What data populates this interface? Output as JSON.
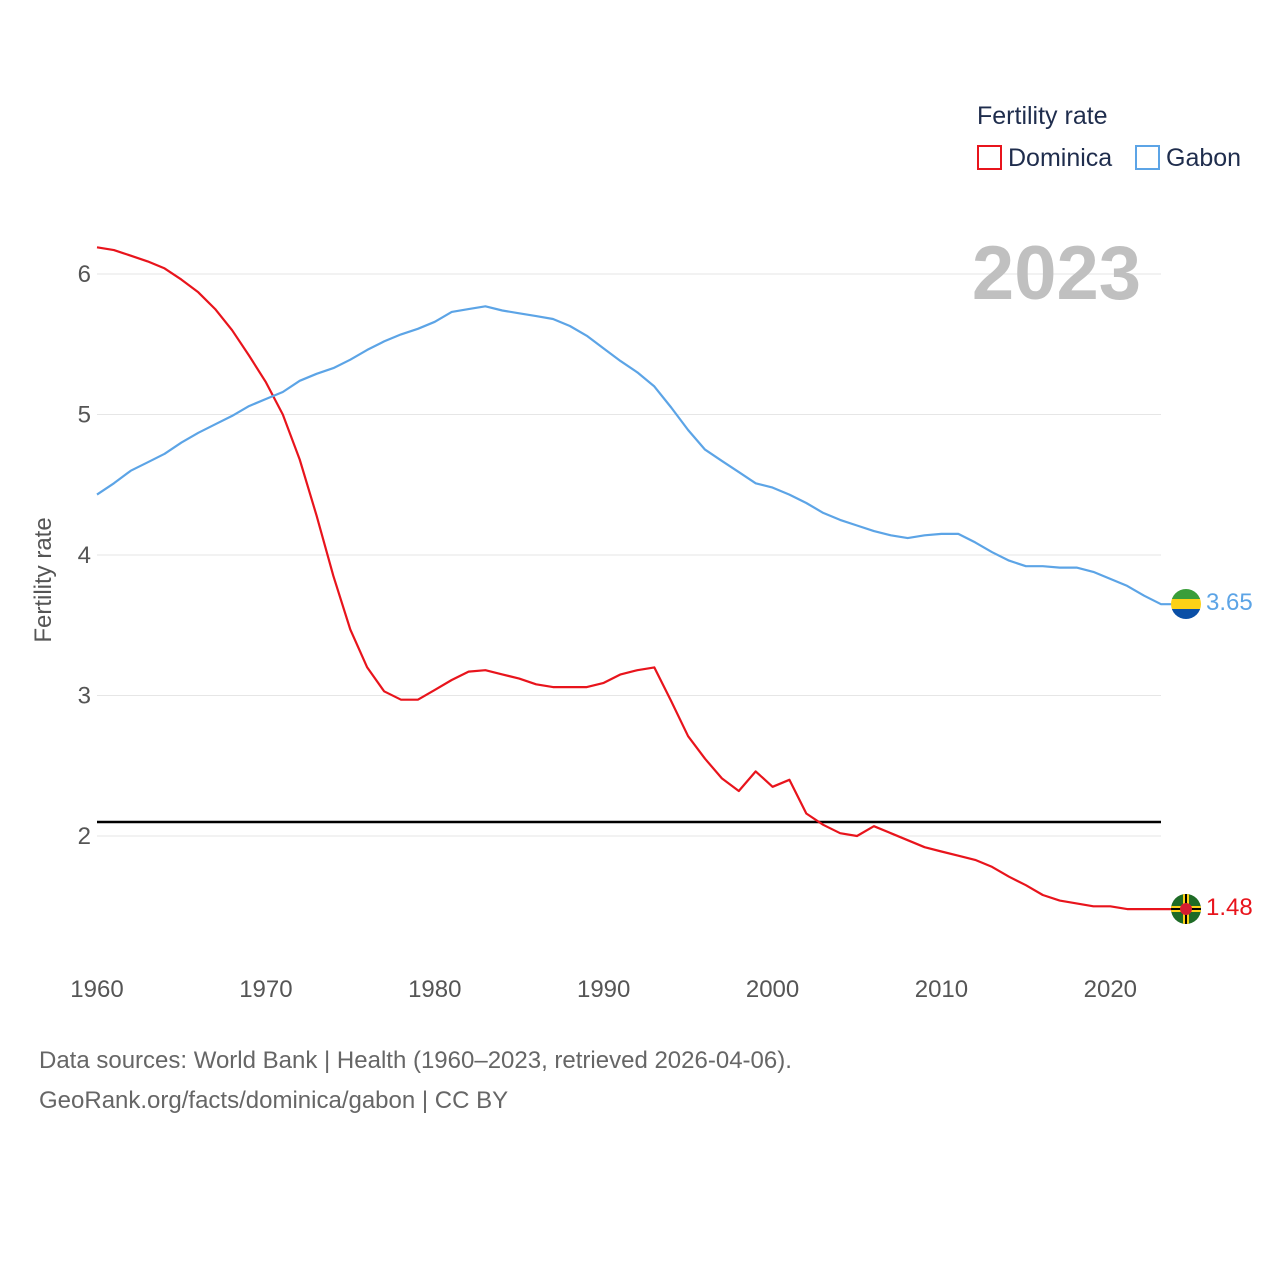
{
  "chart_data": {
    "type": "line",
    "legend_title": "Fertility rate",
    "ylabel": "Fertility rate",
    "year_label": "2023",
    "ylim": [
      1.0,
      6.5
    ],
    "xlim": [
      1960,
      2023
    ],
    "y_ticks": [
      2,
      3,
      4,
      5,
      6
    ],
    "x_ticks": [
      1960,
      1970,
      1980,
      1990,
      2000,
      2010,
      2020
    ],
    "reference_line": 2.1,
    "x": [
      1960,
      1961,
      1962,
      1963,
      1964,
      1965,
      1966,
      1967,
      1968,
      1969,
      1970,
      1971,
      1972,
      1973,
      1974,
      1975,
      1976,
      1977,
      1978,
      1979,
      1980,
      1981,
      1982,
      1983,
      1984,
      1985,
      1986,
      1987,
      1988,
      1989,
      1990,
      1991,
      1992,
      1993,
      1994,
      1995,
      1996,
      1997,
      1998,
      1999,
      2000,
      2001,
      2002,
      2003,
      2004,
      2005,
      2006,
      2007,
      2008,
      2009,
      2010,
      2011,
      2012,
      2013,
      2014,
      2015,
      2016,
      2017,
      2018,
      2019,
      2020,
      2021,
      2022,
      2023
    ],
    "series": [
      {
        "name": "Dominica",
        "color": "#e8141c",
        "end_label": "1.48",
        "flag": "dominica-flag",
        "values": [
          6.19,
          6.17,
          6.13,
          6.09,
          6.04,
          5.96,
          5.87,
          5.75,
          5.6,
          5.42,
          5.23,
          5.0,
          4.68,
          4.28,
          3.85,
          3.47,
          3.2,
          3.03,
          2.97,
          2.97,
          3.04,
          3.11,
          3.17,
          3.18,
          3.15,
          3.12,
          3.08,
          3.06,
          3.06,
          3.06,
          3.09,
          3.15,
          3.18,
          3.2,
          2.96,
          2.71,
          2.55,
          2.41,
          2.32,
          2.46,
          2.35,
          2.4,
          2.16,
          2.08,
          2.02,
          2.0,
          2.07,
          2.02,
          1.97,
          1.92,
          1.89,
          1.86,
          1.83,
          1.78,
          1.71,
          1.65,
          1.58,
          1.54,
          1.52,
          1.5,
          1.5,
          1.48,
          1.48,
          1.48
        ]
      },
      {
        "name": "Gabon",
        "color": "#5ca4e6",
        "end_label": "3.65",
        "flag": "gabon-flag",
        "values": [
          4.43,
          4.51,
          4.6,
          4.66,
          4.72,
          4.8,
          4.87,
          4.93,
          4.99,
          5.06,
          5.11,
          5.16,
          5.24,
          5.29,
          5.33,
          5.39,
          5.46,
          5.52,
          5.57,
          5.61,
          5.66,
          5.73,
          5.75,
          5.77,
          5.74,
          5.72,
          5.7,
          5.68,
          5.63,
          5.56,
          5.47,
          5.38,
          5.3,
          5.2,
          5.05,
          4.89,
          4.75,
          4.67,
          4.59,
          4.51,
          4.48,
          4.43,
          4.37,
          4.3,
          4.25,
          4.21,
          4.17,
          4.14,
          4.12,
          4.14,
          4.15,
          4.15,
          4.09,
          4.02,
          3.96,
          3.92,
          3.92,
          3.91,
          3.91,
          3.88,
          3.83,
          3.78,
          3.71,
          3.65
        ]
      }
    ]
  },
  "source": {
    "line1": "Data sources: World Bank | Health (1960–2023, retrieved 2026-04-06).",
    "line2": "GeoRank.org/facts/dominica/gabon | CC BY"
  }
}
